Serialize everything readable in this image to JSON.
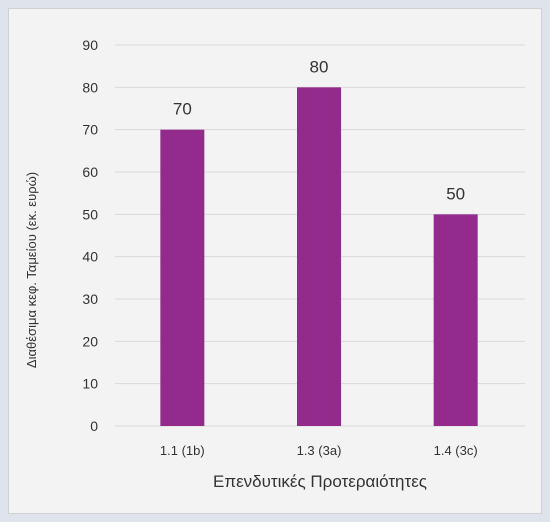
{
  "chart_data": {
    "type": "bar",
    "title": "",
    "xlabel": "Επενδυτικές Προτεραιότητες",
    "ylabel": "Διαθέσιμα κεφ. Ταμείου (εκ. ευρώ)",
    "categories": [
      "1.1 (1b)",
      "1.3 (3a)",
      "1.4 (3c)"
    ],
    "values": [
      70,
      80,
      50
    ],
    "data_labels": [
      "70",
      "80",
      "50"
    ],
    "ylim": [
      0,
      90
    ],
    "yticks": [
      0,
      10,
      20,
      30,
      40,
      50,
      60,
      70,
      80,
      90
    ],
    "grid": true,
    "legend": "none",
    "bar_color": "#922b8c",
    "grid_color": "#d9d9d9",
    "text_color": "#333333"
  }
}
